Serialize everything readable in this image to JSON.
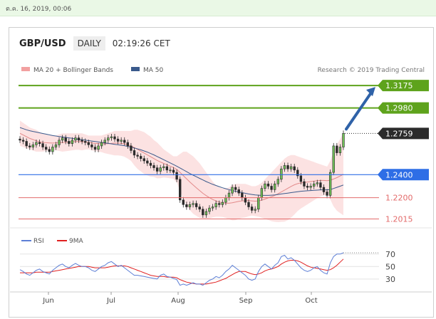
{
  "timestamp": "ต.ค. 16, 2019, 00:06",
  "header": {
    "symbol": "GBP/USD",
    "timeframe": "DAILY",
    "time": "02:19:26 CET"
  },
  "legend": {
    "ma20": "MA 20 + Bollinger Bands",
    "ma50": "MA 50",
    "credit": "Research © 2019 Trading Central"
  },
  "rsi_legend": {
    "rsi": "RSI",
    "ma9": "9MA"
  },
  "colors": {
    "green": "#5ea31c",
    "blue": "#2e6ee6",
    "red": "#e36b6b",
    "dark": "#2b2b2b",
    "band": "#fbd8d8",
    "ma50": "#3a5a8c",
    "ma20": "#e38a8a",
    "rsi": "#5d7fd6",
    "rsi_ma": "#e02020",
    "arrow": "#2f62a8"
  },
  "chart_data": {
    "type": "candlestick",
    "x_ticks": [
      "Jun",
      "Jul",
      "Aug",
      "Sep",
      "Oct"
    ],
    "price_levels": [
      {
        "value": 1.3175,
        "label": "1.3175",
        "kind": "resistance"
      },
      {
        "value": 1.298,
        "label": "1.2980",
        "kind": "resistance"
      },
      {
        "value": 1.2759,
        "label": "1.2759",
        "kind": "last"
      },
      {
        "value": 1.24,
        "label": "1.2400",
        "kind": "pivot"
      },
      {
        "value": 1.22,
        "label": "1.2200",
        "kind": "support"
      },
      {
        "value": 1.2015,
        "label": "1.2015",
        "kind": "support"
      }
    ],
    "close": [
      1.27,
      1.269,
      1.265,
      1.264,
      1.266,
      1.268,
      1.267,
      1.264,
      1.262,
      1.26,
      1.264,
      1.266,
      1.27,
      1.272,
      1.269,
      1.267,
      1.27,
      1.272,
      1.27,
      1.269,
      1.268,
      1.266,
      1.264,
      1.262,
      1.265,
      1.268,
      1.27,
      1.272,
      1.273,
      1.271,
      1.269,
      1.27,
      1.268,
      1.265,
      1.261,
      1.257,
      1.256,
      1.254,
      1.252,
      1.25,
      1.248,
      1.246,
      1.243,
      1.246,
      1.247,
      1.244,
      1.244,
      1.242,
      1.236,
      1.218,
      1.214,
      1.212,
      1.214,
      1.215,
      1.212,
      1.21,
      1.205,
      1.208,
      1.211,
      1.212,
      1.215,
      1.214,
      1.216,
      1.22,
      1.224,
      1.229,
      1.227,
      1.224,
      1.22,
      1.216,
      1.212,
      1.209,
      1.21,
      1.22,
      1.228,
      1.232,
      1.23,
      1.227,
      1.232,
      1.236,
      1.245,
      1.248,
      1.245,
      1.247,
      1.244,
      1.239,
      1.234,
      1.23,
      1.229,
      1.23,
      1.232,
      1.233,
      1.229,
      1.225,
      1.222,
      1.242,
      1.265,
      1.259,
      1.264,
      1.2759
    ],
    "ma20": [
      1.276,
      1.2745,
      1.273,
      1.2715,
      1.2705,
      1.2695,
      1.2685,
      1.268,
      1.2678,
      1.2676,
      1.2675,
      1.2676,
      1.2678,
      1.268,
      1.2682,
      1.2684,
      1.2686,
      1.2688,
      1.2688,
      1.2686,
      1.2684,
      1.268,
      1.2676,
      1.2672,
      1.267,
      1.2668,
      1.2668,
      1.267,
      1.2672,
      1.2674,
      1.2674,
      1.2672,
      1.2668,
      1.266,
      1.265,
      1.2636,
      1.262,
      1.2604,
      1.2588,
      1.2572,
      1.2556,
      1.254,
      1.2524,
      1.251,
      1.2498,
      1.2486,
      1.2474,
      1.2462,
      1.2446,
      1.242,
      1.2392,
      1.2364,
      1.2336,
      1.231,
      1.2286,
      1.2262,
      1.2238,
      1.2218,
      1.22,
      1.2184,
      1.2172,
      1.2162,
      1.2156,
      1.2152,
      1.2152,
      1.2156,
      1.2162,
      1.2168,
      1.2172,
      1.2174,
      1.2174,
      1.2172,
      1.217,
      1.2172,
      1.2178,
      1.2188,
      1.2198,
      1.2208,
      1.222,
      1.2234,
      1.225,
      1.2266,
      1.2282,
      1.2298,
      1.2312,
      1.2322,
      1.2328,
      1.2332,
      1.2336,
      1.234,
      1.2344,
      1.2348,
      1.235,
      1.235,
      1.2348,
      1.2352,
      1.2362,
      1.2374,
      1.2388,
      1.2404
    ],
    "bb_upper": [
      1.287,
      1.285,
      1.283,
      1.281,
      1.28,
      1.279,
      1.277,
      1.276,
      1.275,
      1.274,
      1.274,
      1.274,
      1.275,
      1.276,
      1.276,
      1.276,
      1.276,
      1.276,
      1.276,
      1.276,
      1.275,
      1.274,
      1.274,
      1.274,
      1.274,
      1.274,
      1.275,
      1.276,
      1.277,
      1.278,
      1.278,
      1.278,
      1.278,
      1.278,
      1.278,
      1.279,
      1.279,
      1.278,
      1.277,
      1.275,
      1.273,
      1.27,
      1.268,
      1.265,
      1.262,
      1.26,
      1.258,
      1.256,
      1.256,
      1.258,
      1.26,
      1.26,
      1.258,
      1.256,
      1.253,
      1.25,
      1.246,
      1.242,
      1.238,
      1.234,
      1.231,
      1.229,
      1.228,
      1.228,
      1.229,
      1.231,
      1.232,
      1.232,
      1.232,
      1.232,
      1.231,
      1.23,
      1.23,
      1.231,
      1.233,
      1.236,
      1.239,
      1.242,
      1.245,
      1.248,
      1.251,
      1.254,
      1.256,
      1.257,
      1.257,
      1.256,
      1.255,
      1.254,
      1.253,
      1.252,
      1.251,
      1.25,
      1.249,
      1.248,
      1.247,
      1.252,
      1.26,
      1.266,
      1.271,
      1.276
    ],
    "bb_lower": [
      1.265,
      1.264,
      1.263,
      1.262,
      1.261,
      1.26,
      1.26,
      1.26,
      1.2606,
      1.2612,
      1.261,
      1.2612,
      1.2606,
      1.26,
      1.2604,
      1.2608,
      1.2612,
      1.2616,
      1.2616,
      1.2612,
      1.2618,
      1.262,
      1.2612,
      1.2604,
      1.26,
      1.2596,
      1.2586,
      1.258,
      1.2574,
      1.2568,
      1.2568,
      1.2564,
      1.2556,
      1.254,
      1.252,
      1.2482,
      1.245,
      1.2428,
      1.2406,
      1.2394,
      1.2382,
      1.238,
      1.2368,
      1.237,
      1.2376,
      1.2372,
      1.2368,
      1.2364,
      1.2332,
      1.226,
      1.2184,
      1.2128,
      1.2092,
      1.206,
      1.2042,
      1.2024,
      1.2016,
      1.2016,
      1.202,
      1.2028,
      1.2034,
      1.2034,
      1.2032,
      1.2024,
      1.2014,
      1.2002,
      1.2004,
      1.2016,
      1.2024,
      1.2028,
      1.2038,
      1.2044,
      1.204,
      1.2034,
      1.2026,
      1.2016,
      1.2006,
      1.1996,
      1.199,
      1.1988,
      1.199,
      1.1992,
      1.2004,
      1.2026,
      1.2054,
      1.2084,
      1.2106,
      1.2124,
      1.2142,
      1.216,
      1.2178,
      1.2196,
      1.221,
      1.222,
      1.2226,
      1.2184,
      1.2124,
      1.2088,
      1.2066,
      1.2048
    ],
    "ma50": [
      1.281,
      1.28,
      1.279,
      1.2782,
      1.2776,
      1.277,
      1.2764,
      1.2758,
      1.2752,
      1.2746,
      1.274,
      1.2736,
      1.2732,
      1.2728,
      1.2724,
      1.272,
      1.2716,
      1.2712,
      1.2708,
      1.2704,
      1.27,
      1.2696,
      1.2692,
      1.2688,
      1.2684,
      1.268,
      1.2676,
      1.2672,
      1.2668,
      1.2664,
      1.266,
      1.2656,
      1.2652,
      1.2646,
      1.264,
      1.2632,
      1.2624,
      1.2616,
      1.2606,
      1.2596,
      1.2584,
      1.2572,
      1.2558,
      1.2544,
      1.253,
      1.2516,
      1.2502,
      1.2488,
      1.2474,
      1.2458,
      1.2442,
      1.2426,
      1.241,
      1.2396,
      1.2382,
      1.2368,
      1.2354,
      1.234,
      1.2328,
      1.2316,
      1.2306,
      1.2296,
      1.2286,
      1.2278,
      1.227,
      1.2262,
      1.2256,
      1.225,
      1.2244,
      1.2238,
      1.2232,
      1.2228,
      1.2224,
      1.2222,
      1.222,
      1.222,
      1.222,
      1.2222,
      1.2224,
      1.2228,
      1.2232,
      1.2236,
      1.224,
      1.2244,
      1.2248,
      1.2252,
      1.2256,
      1.2258,
      1.226,
      1.2262,
      1.2264,
      1.2266,
      1.2268,
      1.2268,
      1.2268,
      1.227,
      1.228,
      1.229,
      1.23,
      1.231
    ],
    "rsi": [
      45,
      42,
      38,
      36,
      40,
      44,
      46,
      42,
      40,
      38,
      44,
      48,
      52,
      54,
      50,
      48,
      52,
      55,
      52,
      50,
      50,
      48,
      44,
      42,
      46,
      50,
      52,
      56,
      58,
      54,
      50,
      52,
      48,
      44,
      40,
      36,
      36,
      35,
      34,
      33,
      32,
      31,
      30,
      36,
      38,
      34,
      33,
      31,
      29,
      20,
      22,
      20,
      22,
      24,
      22,
      22,
      20,
      24,
      28,
      30,
      34,
      32,
      36,
      42,
      46,
      52,
      48,
      44,
      40,
      36,
      30,
      28,
      30,
      42,
      50,
      54,
      50,
      46,
      52,
      56,
      66,
      68,
      62,
      64,
      60,
      54,
      48,
      44,
      42,
      44,
      48,
      50,
      44,
      40,
      38,
      56,
      66,
      70,
      70,
      72
    ],
    "rsi_9ma": [
      40,
      40,
      40,
      40,
      40,
      41,
      41,
      41,
      41,
      41,
      42,
      43,
      44,
      45,
      46,
      47,
      48,
      49,
      50,
      50,
      50,
      50,
      49,
      48,
      48,
      48,
      48,
      49,
      50,
      51,
      51,
      51,
      51,
      50,
      48,
      46,
      44,
      42,
      40,
      38,
      36,
      35,
      34,
      34,
      34,
      33,
      33,
      33,
      32,
      29,
      27,
      25,
      24,
      23,
      22,
      22,
      22,
      22,
      23,
      24,
      25,
      27,
      29,
      31,
      34,
      37,
      40,
      42,
      42,
      42,
      40,
      38,
      37,
      38,
      40,
      43,
      45,
      46,
      48,
      50,
      54,
      57,
      59,
      60,
      60,
      59,
      57,
      54,
      51,
      49,
      48,
      47,
      46,
      45,
      44,
      45,
      48,
      52,
      57,
      62
    ],
    "rsi_ticks": [
      70,
      50,
      30
    ],
    "price_range": [
      1.195,
      1.325
    ],
    "rsi_range": [
      15,
      80
    ]
  }
}
